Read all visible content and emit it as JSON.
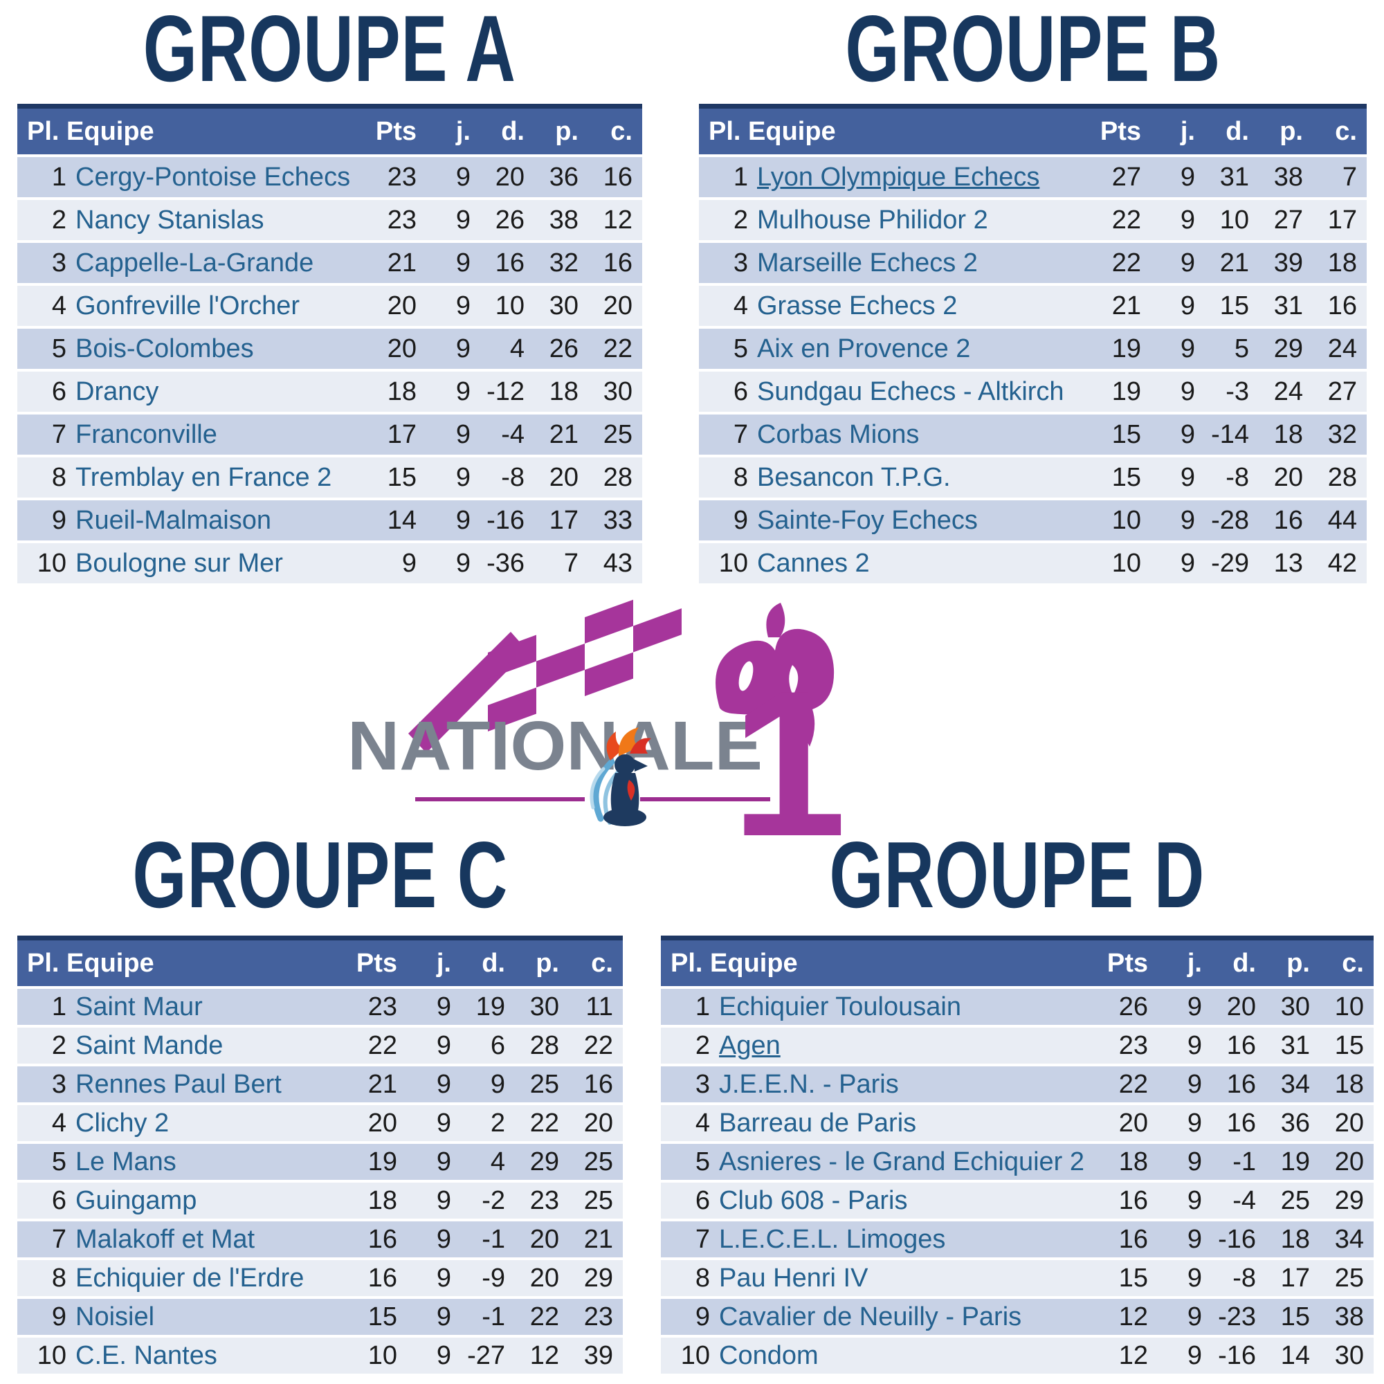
{
  "column_headers": [
    "Pl. Equipe",
    "Pts",
    "j.",
    "d.",
    "p.",
    "c."
  ],
  "logo": {
    "wordmark": "NATIONALE",
    "number": "1"
  },
  "colors": {
    "header_bg": "#44619D",
    "header_top_border": "#1F3864",
    "row_odd_bg": "#C8D2E6",
    "row_even_bg": "#E9EDF4",
    "team_text": "#24618F",
    "stat_text": "#1A1A1A",
    "group_title": "#17375E",
    "logo_magenta": "#A6359B",
    "logo_divider_magenta": "#9C2D90",
    "logo_wordmark_gray": "#7B838F",
    "logo_pawn_navy": "#1E3A5F",
    "logo_flame_orange": "#F07818",
    "logo_flame_red": "#D93025",
    "logo_swoosh_blue": "#5FA8D3"
  },
  "groups": [
    {
      "title": "GROUPE A",
      "rows": [
        {
          "pl": "1",
          "team": "Cergy-Pontoise Echecs",
          "pts": "23",
          "j": "9",
          "d": "20",
          "p": "36",
          "c": "16",
          "u": false
        },
        {
          "pl": "2",
          "team": "Nancy Stanislas",
          "pts": "23",
          "j": "9",
          "d": "26",
          "p": "38",
          "c": "12",
          "u": false
        },
        {
          "pl": "3",
          "team": "Cappelle-La-Grande",
          "pts": "21",
          "j": "9",
          "d": "16",
          "p": "32",
          "c": "16",
          "u": false
        },
        {
          "pl": "4",
          "team": "Gonfreville l'Orcher",
          "pts": "20",
          "j": "9",
          "d": "10",
          "p": "30",
          "c": "20",
          "u": false
        },
        {
          "pl": "5",
          "team": "Bois-Colombes",
          "pts": "20",
          "j": "9",
          "d": "4",
          "p": "26",
          "c": "22",
          "u": false
        },
        {
          "pl": "6",
          "team": "Drancy",
          "pts": "18",
          "j": "9",
          "d": "-12",
          "p": "18",
          "c": "30",
          "u": false
        },
        {
          "pl": "7",
          "team": "Franconville",
          "pts": "17",
          "j": "9",
          "d": "-4",
          "p": "21",
          "c": "25",
          "u": false
        },
        {
          "pl": "8",
          "team": "Tremblay en France 2",
          "pts": "15",
          "j": "9",
          "d": "-8",
          "p": "20",
          "c": "28",
          "u": false
        },
        {
          "pl": "9",
          "team": "Rueil-Malmaison",
          "pts": "14",
          "j": "9",
          "d": "-16",
          "p": "17",
          "c": "33",
          "u": false
        },
        {
          "pl": "10",
          "team": "Boulogne sur Mer",
          "pts": "9",
          "j": "9",
          "d": "-36",
          "p": "7",
          "c": "43",
          "u": false
        }
      ]
    },
    {
      "title": "GROUPE B",
      "rows": [
        {
          "pl": "1",
          "team": "Lyon Olympique Echecs",
          "pts": "27",
          "j": "9",
          "d": "31",
          "p": "38",
          "c": "7",
          "u": true
        },
        {
          "pl": "2",
          "team": "Mulhouse Philidor 2",
          "pts": "22",
          "j": "9",
          "d": "10",
          "p": "27",
          "c": "17",
          "u": false
        },
        {
          "pl": "3",
          "team": "Marseille Echecs 2",
          "pts": "22",
          "j": "9",
          "d": "21",
          "p": "39",
          "c": "18",
          "u": false
        },
        {
          "pl": "4",
          "team": "Grasse Echecs 2",
          "pts": "21",
          "j": "9",
          "d": "15",
          "p": "31",
          "c": "16",
          "u": false
        },
        {
          "pl": "5",
          "team": "Aix en Provence 2",
          "pts": "19",
          "j": "9",
          "d": "5",
          "p": "29",
          "c": "24",
          "u": false
        },
        {
          "pl": "6",
          "team": "Sundgau Echecs - Altkirch",
          "pts": "19",
          "j": "9",
          "d": "-3",
          "p": "24",
          "c": "27",
          "u": false
        },
        {
          "pl": "7",
          "team": "Corbas Mions",
          "pts": "15",
          "j": "9",
          "d": "-14",
          "p": "18",
          "c": "32",
          "u": false
        },
        {
          "pl": "8",
          "team": "Besancon T.P.G.",
          "pts": "15",
          "j": "9",
          "d": "-8",
          "p": "20",
          "c": "28",
          "u": false
        },
        {
          "pl": "9",
          "team": "Sainte-Foy Echecs",
          "pts": "10",
          "j": "9",
          "d": "-28",
          "p": "16",
          "c": "44",
          "u": false
        },
        {
          "pl": "10",
          "team": "Cannes 2",
          "pts": "10",
          "j": "9",
          "d": "-29",
          "p": "13",
          "c": "42",
          "u": false
        }
      ]
    },
    {
      "title": "GROUPE C",
      "rows": [
        {
          "pl": "1",
          "team": "Saint Maur",
          "pts": "23",
          "j": "9",
          "d": "19",
          "p": "30",
          "c": "11",
          "u": false
        },
        {
          "pl": "2",
          "team": "Saint Mande",
          "pts": "22",
          "j": "9",
          "d": "6",
          "p": "28",
          "c": "22",
          "u": false
        },
        {
          "pl": "3",
          "team": "Rennes Paul Bert",
          "pts": "21",
          "j": "9",
          "d": "9",
          "p": "25",
          "c": "16",
          "u": false
        },
        {
          "pl": "4",
          "team": "Clichy 2",
          "pts": "20",
          "j": "9",
          "d": "2",
          "p": "22",
          "c": "20",
          "u": false
        },
        {
          "pl": "5",
          "team": "Le Mans",
          "pts": "19",
          "j": "9",
          "d": "4",
          "p": "29",
          "c": "25",
          "u": false
        },
        {
          "pl": "6",
          "team": "Guingamp",
          "pts": "18",
          "j": "9",
          "d": "-2",
          "p": "23",
          "c": "25",
          "u": false
        },
        {
          "pl": "7",
          "team": "Malakoff et Mat",
          "pts": "16",
          "j": "9",
          "d": "-1",
          "p": "20",
          "c": "21",
          "u": false
        },
        {
          "pl": "8",
          "team": "Echiquier de l'Erdre",
          "pts": "16",
          "j": "9",
          "d": "-9",
          "p": "20",
          "c": "29",
          "u": false
        },
        {
          "pl": "9",
          "team": "Noisiel",
          "pts": "15",
          "j": "9",
          "d": "-1",
          "p": "22",
          "c": "23",
          "u": false
        },
        {
          "pl": "10",
          "team": "C.E. Nantes",
          "pts": "10",
          "j": "9",
          "d": "-27",
          "p": "12",
          "c": "39",
          "u": false
        }
      ]
    },
    {
      "title": "GROUPE D",
      "rows": [
        {
          "pl": "1",
          "team": "Echiquier Toulousain",
          "pts": "26",
          "j": "9",
          "d": "20",
          "p": "30",
          "c": "10",
          "u": false
        },
        {
          "pl": "2",
          "team": "Agen",
          "pts": "23",
          "j": "9",
          "d": "16",
          "p": "31",
          "c": "15",
          "u": true
        },
        {
          "pl": "3",
          "team": "J.E.E.N. - Paris",
          "pts": "22",
          "j": "9",
          "d": "16",
          "p": "34",
          "c": "18",
          "u": false
        },
        {
          "pl": "4",
          "team": "Barreau de Paris",
          "pts": "20",
          "j": "9",
          "d": "16",
          "p": "36",
          "c": "20",
          "u": false
        },
        {
          "pl": "5",
          "team": "Asnieres - le Grand Echiquier 2",
          "pts": "18",
          "j": "9",
          "d": "-1",
          "p": "19",
          "c": "20",
          "u": false
        },
        {
          "pl": "6",
          "team": "Club 608 - Paris",
          "pts": "16",
          "j": "9",
          "d": "-4",
          "p": "25",
          "c": "29",
          "u": false
        },
        {
          "pl": "7",
          "team": "L.E.C.E.L. Limoges",
          "pts": "16",
          "j": "9",
          "d": "-16",
          "p": "18",
          "c": "34",
          "u": false
        },
        {
          "pl": "8",
          "team": "Pau Henri IV",
          "pts": "15",
          "j": "9",
          "d": "-8",
          "p": "17",
          "c": "25",
          "u": false
        },
        {
          "pl": "9",
          "team": "Cavalier de Neuilly - Paris",
          "pts": "12",
          "j": "9",
          "d": "-23",
          "p": "15",
          "c": "38",
          "u": false
        },
        {
          "pl": "10",
          "team": "Condom",
          "pts": "12",
          "j": "9",
          "d": "-16",
          "p": "14",
          "c": "30",
          "u": false
        }
      ]
    }
  ]
}
